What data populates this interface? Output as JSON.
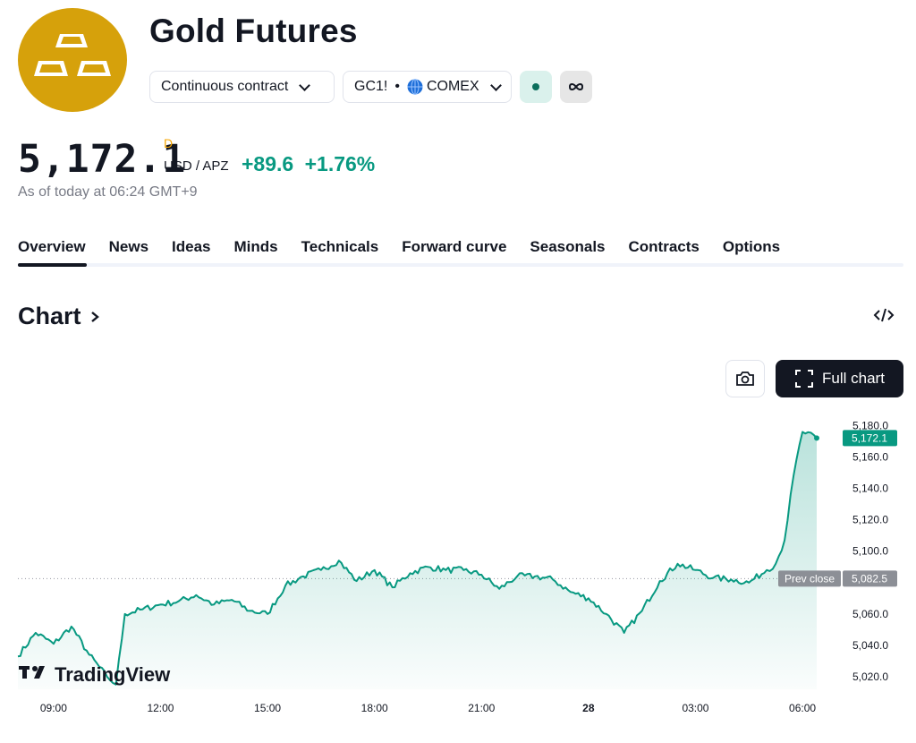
{
  "header": {
    "logo_icon": "gold-bars-icon",
    "title": "Gold Futures",
    "contract_label": "Continuous contract",
    "symbol": "GC1!",
    "dot": "•",
    "exchange_icon": "globe-icon",
    "exchange": "COMEX",
    "market_status_icon": "market-open-dot-icon",
    "extra_icon": "infinity-icon"
  },
  "quote": {
    "price": "5,172.1",
    "flag": "D",
    "currency": "USD / APZ",
    "change": "+89.6",
    "change_pct": "+1.76%",
    "as_of": "As of today at 06:24 GMT+9"
  },
  "tabs": [
    "Overview",
    "News",
    "Ideas",
    "Minds",
    "Technicals",
    "Forward curve",
    "Seasonals",
    "Contracts",
    "Options"
  ],
  "active_tab": "Overview",
  "chart_section": {
    "heading": "Chart",
    "heading_icon": "chevron-right-icon",
    "embed_icon": "code-embed-icon",
    "snapshot_icon": "camera-icon",
    "full_chart_icon": "fullscreen-icon",
    "full_chart_label": "Full chart",
    "watermark": "TradingView",
    "watermark_icon": "tradingview-logo-icon"
  },
  "colors": {
    "accent_green": "#089981",
    "brand_gold": "#d6a10b",
    "dark": "#131722"
  },
  "chart_data": {
    "type": "area",
    "x_ticks": [
      "09:00",
      "12:00",
      "15:00",
      "18:00",
      "21:00",
      "28",
      "03:00",
      "06:00"
    ],
    "y_ticks": [
      "5,180.0",
      "5,160.0",
      "5,140.0",
      "5,120.0",
      "5,100.0",
      "5,060.0",
      "5,040.0",
      "5,020.0"
    ],
    "ylim": [
      5012,
      5186
    ],
    "last_price_label": "5,172.1",
    "prev_close_label": "Prev close",
    "prev_close_value_label": "5,082.5",
    "prev_close": 5082.5,
    "last": 5172.1,
    "time": [
      "08:00",
      "08:30",
      "09:00",
      "09:30",
      "10:00",
      "10:30",
      "10:45",
      "11:00",
      "11:30",
      "12:00",
      "12:30",
      "13:00",
      "13:30",
      "14:00",
      "14:30",
      "15:00",
      "15:30",
      "16:00",
      "16:30",
      "17:00",
      "17:30",
      "18:00",
      "18:30",
      "19:00",
      "19:30",
      "20:00",
      "20:30",
      "21:00",
      "21:30",
      "22:00",
      "22:30",
      "23:00",
      "23:30",
      "00:00",
      "00:30",
      "01:00",
      "01:30",
      "02:00",
      "02:30",
      "03:00",
      "03:30",
      "04:00",
      "04:30",
      "05:00",
      "05:15",
      "05:30",
      "05:45",
      "06:00",
      "06:24"
    ],
    "values": [
      5033,
      5048,
      5041,
      5052,
      5034,
      5020,
      5015,
      5060,
      5063,
      5066,
      5068,
      5072,
      5066,
      5069,
      5062,
      5060,
      5078,
      5084,
      5088,
      5094,
      5081,
      5088,
      5077,
      5086,
      5090,
      5088,
      5088,
      5085,
      5076,
      5084,
      5084,
      5082,
      5074,
      5070,
      5060,
      5048,
      5062,
      5081,
      5092,
      5088,
      5083,
      5082,
      5080,
      5088,
      5092,
      5107,
      5148,
      5176,
      5172.1
    ]
  }
}
